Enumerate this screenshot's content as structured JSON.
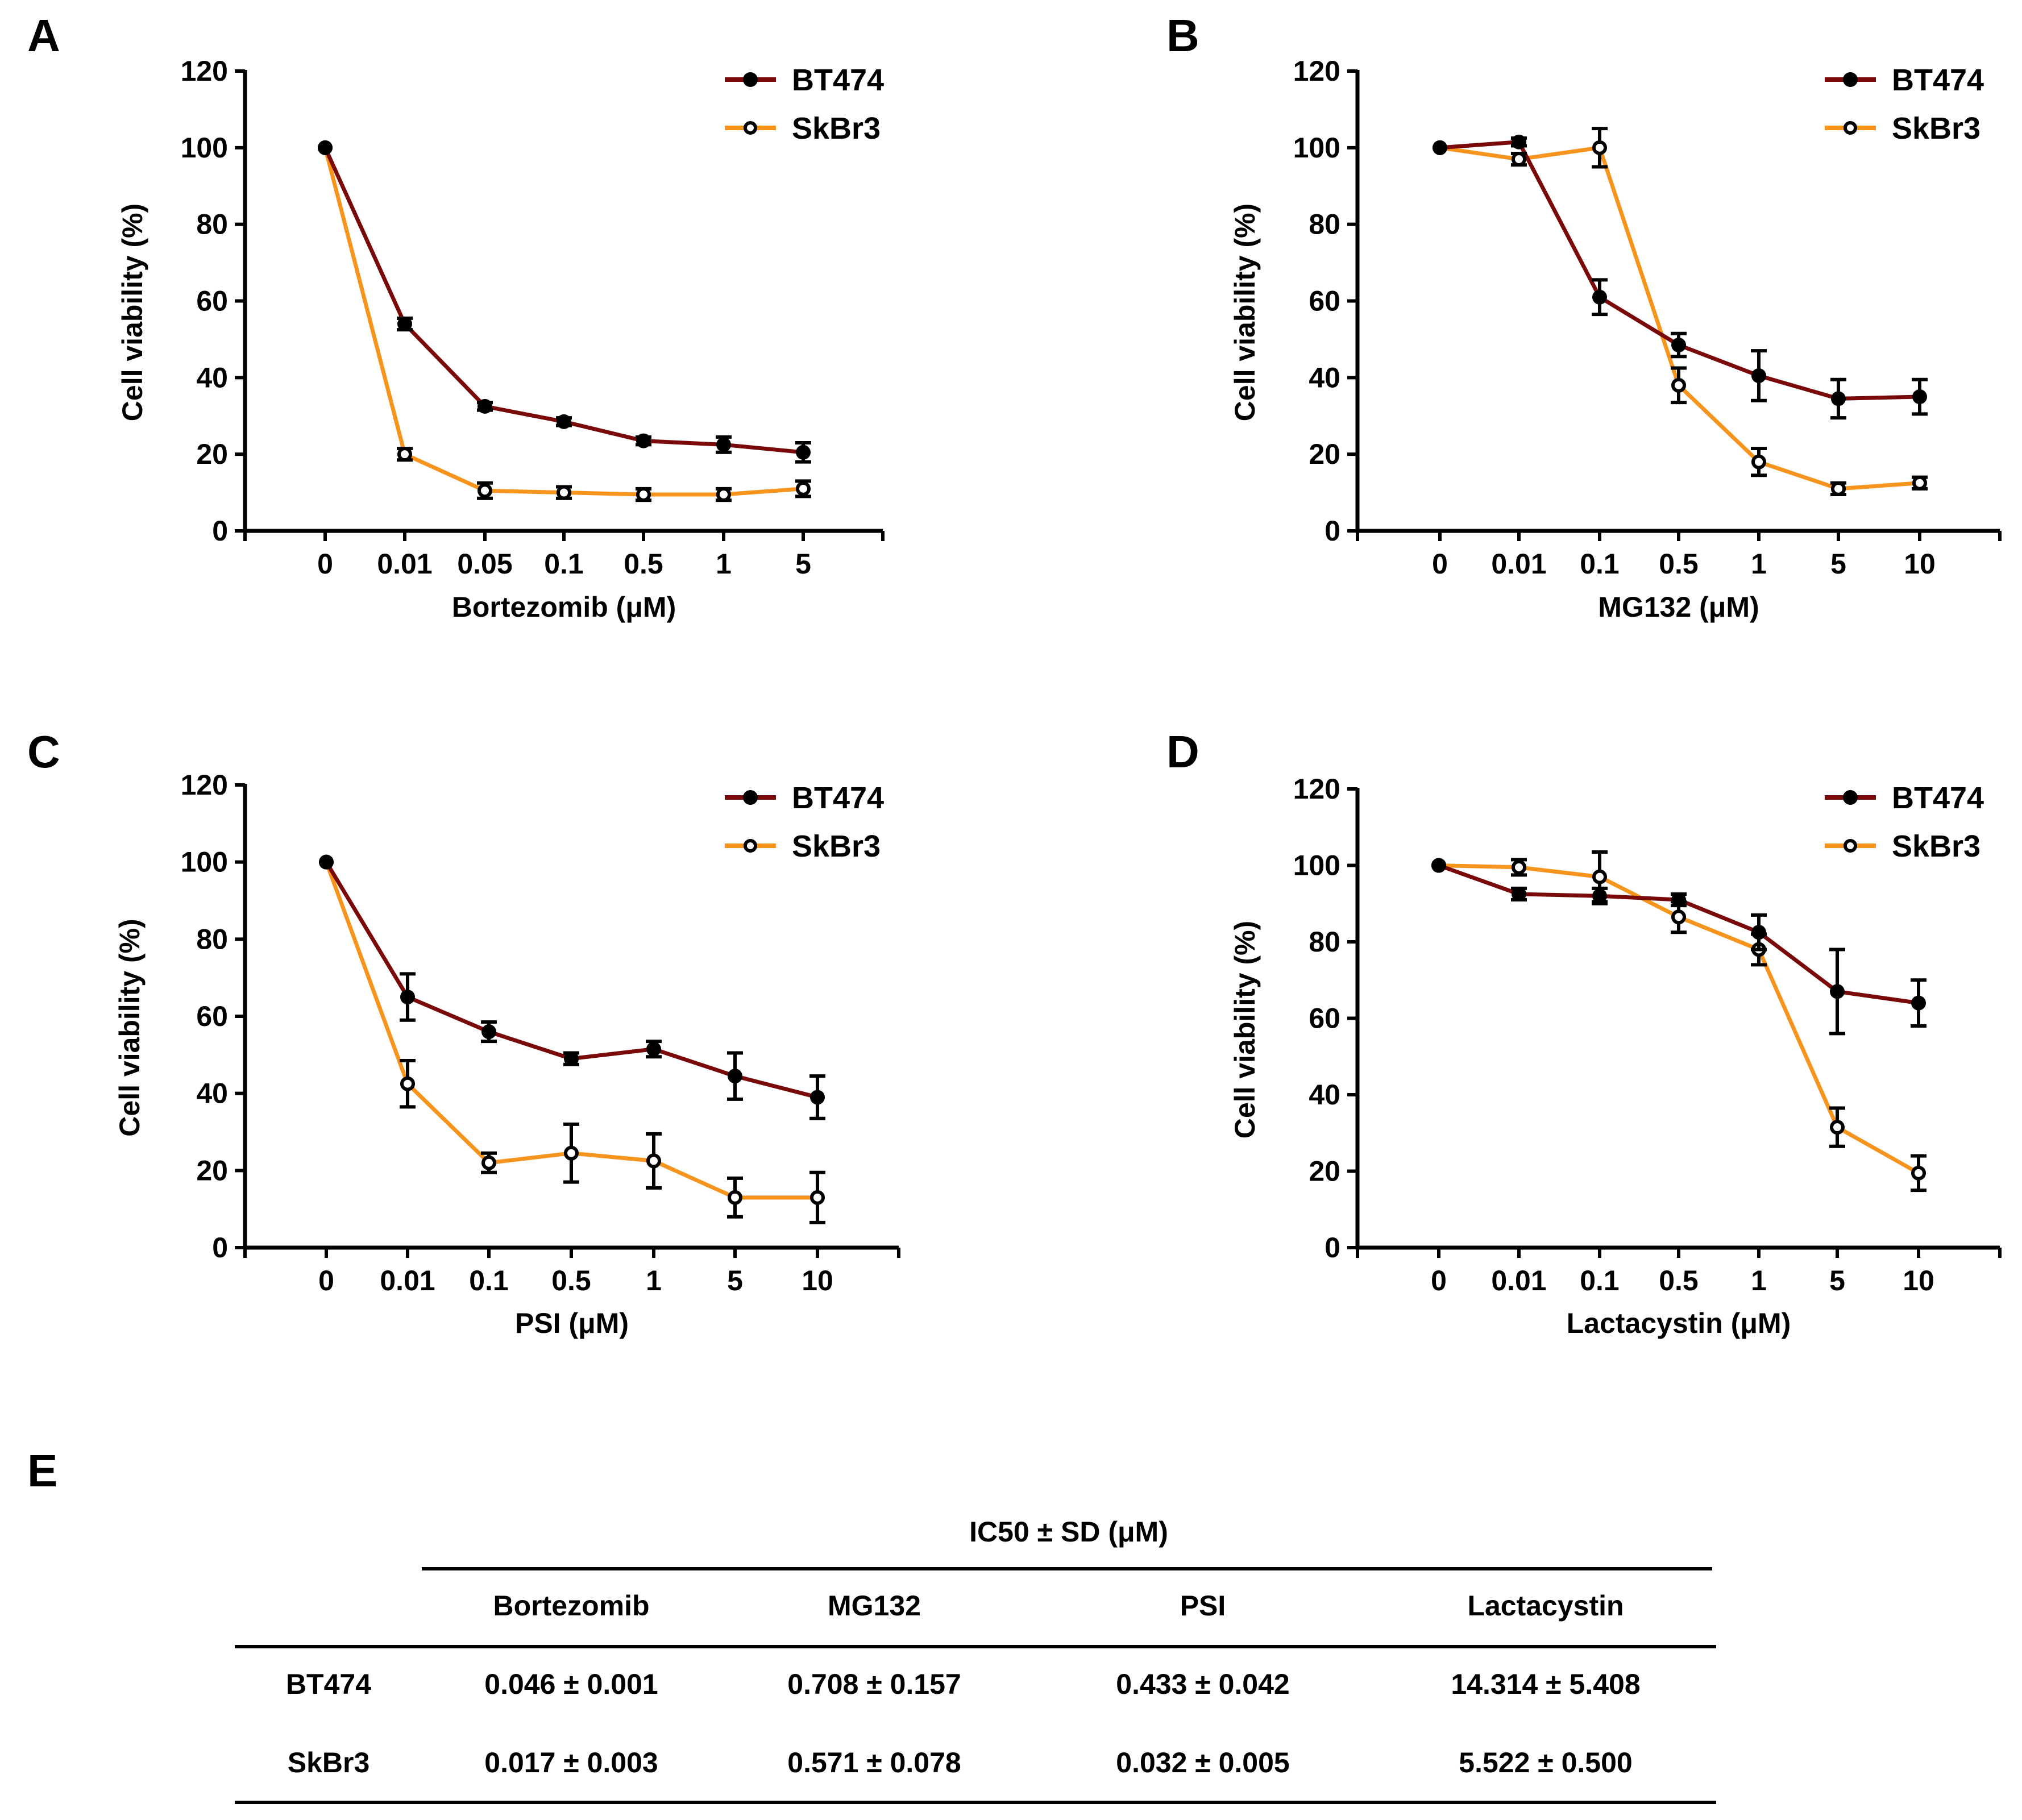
{
  "figure": {
    "table_panel_label": "E",
    "table": {
      "title": "IC50 ± SD (μM)",
      "columns": [
        "Bortezomib",
        "MG132",
        "PSI",
        "Lactacystin"
      ],
      "rows": [
        {
          "label": "BT474",
          "values": [
            "0.046 ± 0.001",
            "0.708 ± 0.157",
            "0.433 ± 0.042",
            "14.314 ± 5.408"
          ]
        },
        {
          "label": "SkBr3",
          "values": [
            "0.017 ± 0.003",
            "0.571 ± 0.078",
            "0.032 ± 0.005",
            "5.522 ± 0.500"
          ]
        }
      ]
    }
  },
  "colors": {
    "BT474": "#7a0a0a",
    "SkBr3": "#f7941d",
    "axis": "#000000"
  },
  "chart_data": [
    {
      "panel": "A",
      "type": "line",
      "title": "",
      "xlabel": "Bortezomib (μM)",
      "ylabel": "Cell viability (%)",
      "categories": [
        "0",
        "0.01",
        "0.05",
        "0.1",
        "0.5",
        "1",
        "5"
      ],
      "ylim": [
        0,
        120
      ],
      "yticks": [
        0,
        20,
        40,
        60,
        80,
        100,
        120
      ],
      "grid": false,
      "legend": "top-right",
      "series": [
        {
          "name": "BT474",
          "marker": "filled-circle",
          "values": [
            100,
            54,
            32.5,
            28.5,
            23.5,
            22.5,
            20.5
          ],
          "errors": [
            0,
            1.5,
            1,
            1,
            1,
            2,
            2.5
          ]
        },
        {
          "name": "SkBr3",
          "marker": "open-circle",
          "values": [
            100,
            20,
            10.5,
            10,
            9.5,
            9.5,
            11
          ],
          "errors": [
            0,
            1.5,
            2,
            1.5,
            1.5,
            1.5,
            2
          ]
        }
      ]
    },
    {
      "panel": "B",
      "type": "line",
      "title": "",
      "xlabel": "MG132 (μM)",
      "ylabel": "Cell viability (%)",
      "categories": [
        "0",
        "0.01",
        "0.1",
        "0.5",
        "1",
        "5",
        "10"
      ],
      "ylim": [
        0,
        120
      ],
      "yticks": [
        0,
        20,
        40,
        60,
        80,
        100,
        120
      ],
      "grid": false,
      "legend": "top-right",
      "series": [
        {
          "name": "BT474",
          "marker": "filled-circle",
          "values": [
            100,
            101.5,
            61,
            48.5,
            40.5,
            34.5,
            35
          ],
          "errors": [
            0,
            1,
            4.5,
            3,
            6.5,
            5,
            4.5
          ]
        },
        {
          "name": "SkBr3",
          "marker": "open-circle",
          "values": [
            100,
            97,
            100,
            38,
            18,
            11,
            12.5
          ],
          "errors": [
            0,
            1.5,
            5,
            4.5,
            3.5,
            1.5,
            1.5
          ]
        }
      ]
    },
    {
      "panel": "C",
      "type": "line",
      "title": "",
      "xlabel": "PSI (μM)",
      "ylabel": "Cell viability (%)",
      "categories": [
        "0",
        "0.01",
        "0.1",
        "0.5",
        "1",
        "5",
        "10"
      ],
      "ylim": [
        0,
        120
      ],
      "yticks": [
        0,
        20,
        40,
        60,
        80,
        100,
        120
      ],
      "grid": false,
      "legend": "top-right",
      "series": [
        {
          "name": "BT474",
          "marker": "filled-circle",
          "values": [
            100,
            65,
            56,
            49,
            51.5,
            44.5,
            39
          ],
          "errors": [
            0,
            6,
            2.5,
            1.5,
            2,
            6,
            5.5
          ]
        },
        {
          "name": "SkBr3",
          "marker": "open-circle",
          "values": [
            100,
            42.5,
            22,
            24.5,
            22.5,
            13,
            13
          ],
          "errors": [
            0,
            6,
            2.5,
            7.5,
            7,
            5,
            6.5
          ]
        }
      ]
    },
    {
      "panel": "D",
      "type": "line",
      "title": "",
      "xlabel": "Lactacystin (μM)",
      "ylabel": "Cell viability (%)",
      "categories": [
        "0",
        "0.01",
        "0.1",
        "0.5",
        "1",
        "5",
        "10"
      ],
      "ylim": [
        0,
        120
      ],
      "yticks": [
        0,
        20,
        40,
        60,
        80,
        100,
        120
      ],
      "grid": false,
      "legend": "top-right",
      "series": [
        {
          "name": "BT474",
          "marker": "filled-circle",
          "values": [
            100,
            92.5,
            92,
            91,
            82.5,
            67,
            64
          ],
          "errors": [
            0,
            1.5,
            2,
            1.5,
            4.5,
            11,
            6
          ]
        },
        {
          "name": "SkBr3",
          "marker": "open-circle",
          "values": [
            100,
            99.5,
            97,
            86.5,
            78,
            31.5,
            19.5
          ],
          "errors": [
            0,
            2,
            6.5,
            4,
            4,
            5,
            4.5
          ]
        }
      ]
    }
  ]
}
